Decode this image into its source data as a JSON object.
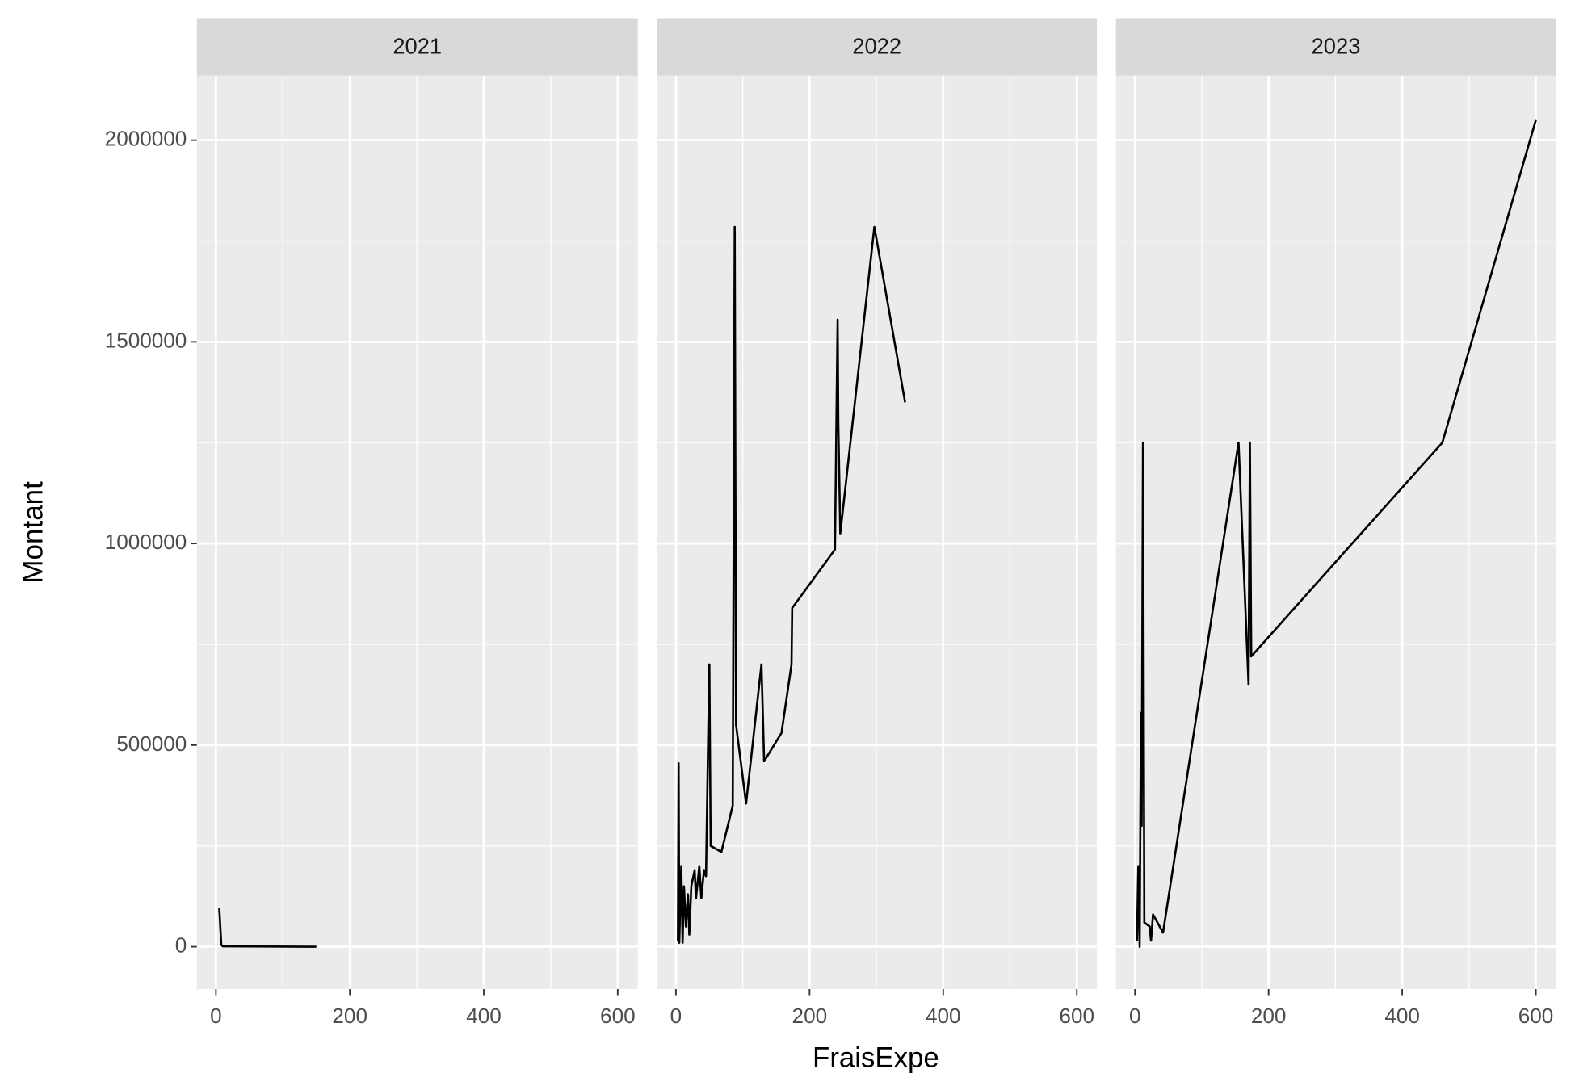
{
  "chart_data": [
    {
      "type": "line",
      "title": "2021",
      "y_label": "Montant",
      "x": [
        5,
        8,
        10,
        150
      ],
      "values": [
        95000,
        5000,
        1000,
        0
      ],
      "color": "#000000",
      "xlim": [
        -28.5,
        630
      ],
      "ylim": [
        -105000,
        2160000
      ],
      "xticks": [
        0,
        200,
        400,
        600
      ],
      "yticks": [
        0,
        500000,
        1000000,
        1500000,
        2000000
      ],
      "grid": true
    },
    {
      "type": "line",
      "title": "2022",
      "x_label": "FraisExpe",
      "x": [
        3,
        4,
        5,
        8,
        10,
        12,
        15,
        18,
        20,
        23,
        28,
        30,
        35,
        38,
        42,
        45,
        50,
        52,
        68,
        85,
        88,
        90,
        105,
        128,
        132,
        158,
        173,
        174,
        238,
        242,
        243,
        246,
        297,
        343
      ],
      "values": [
        15000,
        455000,
        10000,
        200000,
        10000,
        150000,
        50000,
        130000,
        30000,
        150000,
        190000,
        120000,
        200000,
        120000,
        190000,
        175000,
        700000,
        250000,
        235000,
        350000,
        1785000,
        550000,
        355000,
        700000,
        460000,
        530000,
        700000,
        840000,
        985000,
        1555000,
        1300000,
        1025000,
        1785000,
        1350000
      ],
      "color": "#000000",
      "xlim": [
        -28.5,
        630
      ],
      "ylim": [
        -105000,
        2160000
      ],
      "xticks": [
        0,
        200,
        400,
        600
      ],
      "yticks": [
        0,
        500000,
        1000000,
        1500000,
        2000000
      ],
      "grid": true
    },
    {
      "type": "line",
      "title": "2023",
      "x": [
        3,
        5,
        7,
        9,
        10,
        12,
        14,
        22,
        24,
        27,
        42,
        155,
        170,
        172,
        174,
        460,
        600
      ],
      "values": [
        15000,
        200000,
        0,
        580000,
        300000,
        1250000,
        60000,
        50000,
        15000,
        80000,
        35000,
        1250000,
        650000,
        1250000,
        720000,
        1250000,
        2050000
      ],
      "color": "#000000",
      "xlim": [
        -28.5,
        630
      ],
      "ylim": [
        -105000,
        2160000
      ],
      "xticks": [
        0,
        200,
        400,
        600
      ],
      "yticks": [
        0,
        500000,
        1000000,
        1500000,
        2000000
      ],
      "grid": true
    }
  ]
}
